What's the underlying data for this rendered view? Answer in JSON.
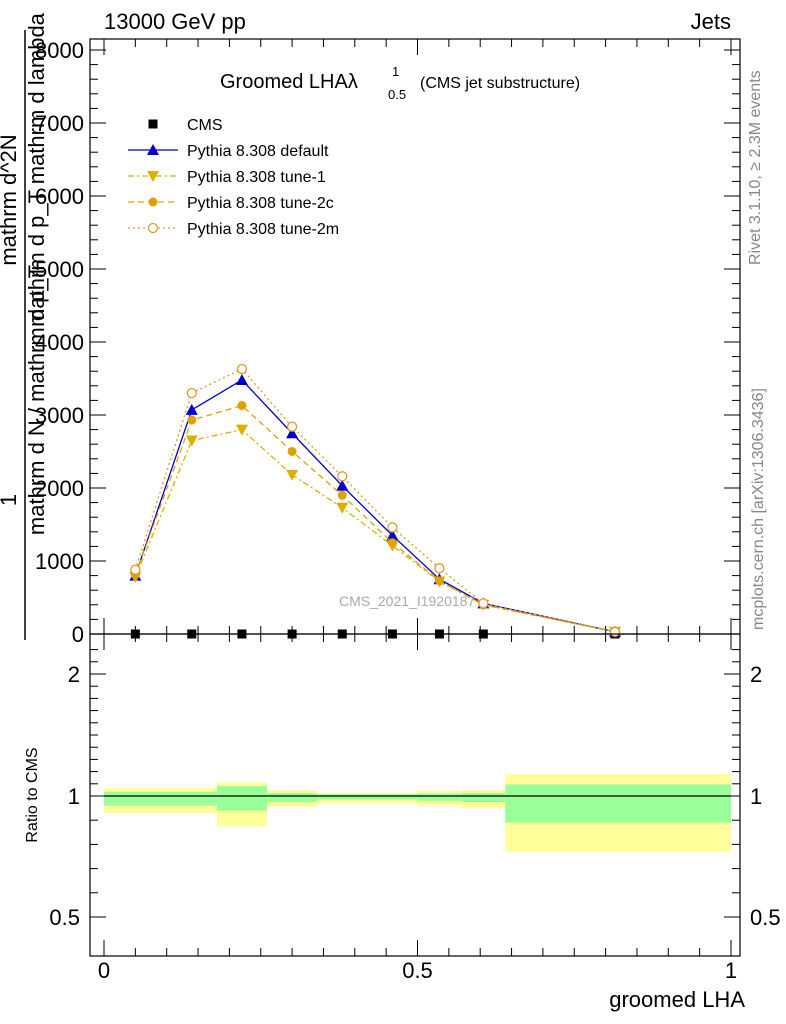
{
  "header": {
    "left": "13000 GeV pp",
    "right": "Jets"
  },
  "side_labels": {
    "rivet": "Rivet 3.1.10, ≥ 2.3M events",
    "mcplots": "mcplots.cern.ch [arXiv:1306.3436]"
  },
  "plot_title": {
    "main": "Groomed LHAλ",
    "sup": "1",
    "sub": "0.5",
    "suffix": "(CMS jet substructure)"
  },
  "watermark": "CMS_2021_I1920187",
  "ylabel_main": {
    "numerator_frac": "1",
    "denominator_frac": "mathrm d N / mathrm d p_T",
    "deriv_numerator": "mathrm d^2N",
    "deriv_denominator": "mathrm d p_T mathrm d lambda"
  },
  "ratio_ylabel": "Ratio to CMS",
  "xlabel": "groomed LHA",
  "colors": {
    "cms": "#000000",
    "default": "#0000cc",
    "tune1": "#ddb000",
    "tune2c": "#e0a000",
    "tune2m": "#e09a30",
    "band_inner": "#99ff99",
    "band_outer": "#ffff99"
  },
  "chart_data": {
    "type": "line",
    "main_panel": {
      "xlim": [
        0,
        1
      ],
      "ylim": [
        0,
        8000
      ],
      "x_ticks": [
        0,
        0.5,
        1
      ],
      "x_tick_labels": [
        "0",
        "0.5",
        "1"
      ],
      "y_ticks": [
        0,
        1000,
        2000,
        3000,
        4000,
        5000,
        6000,
        7000,
        8000
      ],
      "y_tick_labels": [
        "0",
        "1000",
        "2000",
        "3000",
        "4000",
        "5000",
        "6000",
        "7000",
        "8000"
      ],
      "legend_position": "top-left",
      "series": [
        {
          "name": "CMS",
          "style": "cms-square",
          "x": [
            0.05,
            0.14,
            0.22,
            0.3,
            0.38,
            0.46,
            0.535,
            0.605,
            0.815
          ],
          "y": [
            0,
            0,
            0,
            0,
            0,
            0,
            0,
            0,
            0
          ]
        },
        {
          "name": "Pythia 8.308 default",
          "style": "default",
          "x": [
            0.05,
            0.14,
            0.22,
            0.3,
            0.38,
            0.46,
            0.535,
            0.605,
            0.815
          ],
          "y": [
            800,
            3070,
            3480,
            2750,
            2030,
            1350,
            750,
            420,
            30
          ]
        },
        {
          "name": "Pythia 8.308 tune-1",
          "style": "tune1",
          "x": [
            0.05,
            0.14,
            0.22,
            0.3,
            0.38,
            0.46,
            0.535,
            0.605,
            0.815
          ],
          "y": [
            780,
            2650,
            2800,
            2180,
            1730,
            1210,
            720,
            400,
            30
          ]
        },
        {
          "name": "Pythia 8.308 tune-2c",
          "style": "tune2c",
          "x": [
            0.05,
            0.14,
            0.22,
            0.3,
            0.38,
            0.46,
            0.535,
            0.605,
            0.815
          ],
          "y": [
            810,
            2930,
            3130,
            2500,
            1900,
            1250,
            730,
            400,
            30
          ]
        },
        {
          "name": "Pythia 8.308 tune-2m",
          "style": "tune2m",
          "x": [
            0.05,
            0.14,
            0.22,
            0.3,
            0.38,
            0.46,
            0.535,
            0.605,
            0.815
          ],
          "y": [
            880,
            3300,
            3630,
            2840,
            2160,
            1460,
            900,
            420,
            30
          ]
        }
      ]
    },
    "ratio_panel": {
      "xlim": [
        0,
        1
      ],
      "ylim": [
        0.4,
        2.3
      ],
      "y_ticks": [
        0.5,
        1,
        2
      ],
      "y_tick_labels": [
        "0.5",
        "1",
        "2"
      ],
      "bins": [
        {
          "x0": 0.0,
          "x1": 0.18,
          "inner": [
            0.96,
            1.035
          ],
          "outer": [
            0.93,
            1.065
          ]
        },
        {
          "x0": 0.18,
          "x1": 0.26,
          "inner": [
            0.94,
            1.08
          ],
          "outer": [
            0.875,
            1.11
          ]
        },
        {
          "x0": 0.26,
          "x1": 0.34,
          "inner": [
            0.975,
            1.025
          ],
          "outer": [
            0.955,
            1.05
          ]
        },
        {
          "x0": 0.34,
          "x1": 0.5,
          "inner": [
            0.985,
            1.015
          ],
          "outer": [
            0.97,
            1.025
          ]
        },
        {
          "x0": 0.5,
          "x1": 0.57,
          "inner": [
            0.98,
            1.02
          ],
          "outer": [
            0.96,
            1.04
          ]
        },
        {
          "x0": 0.57,
          "x1": 0.64,
          "inner": [
            0.975,
            1.025
          ],
          "outer": [
            0.95,
            1.05
          ]
        },
        {
          "x0": 0.64,
          "x1": 1.0,
          "inner": [
            0.89,
            1.095
          ],
          "outer": [
            0.77,
            1.18
          ]
        }
      ]
    }
  }
}
